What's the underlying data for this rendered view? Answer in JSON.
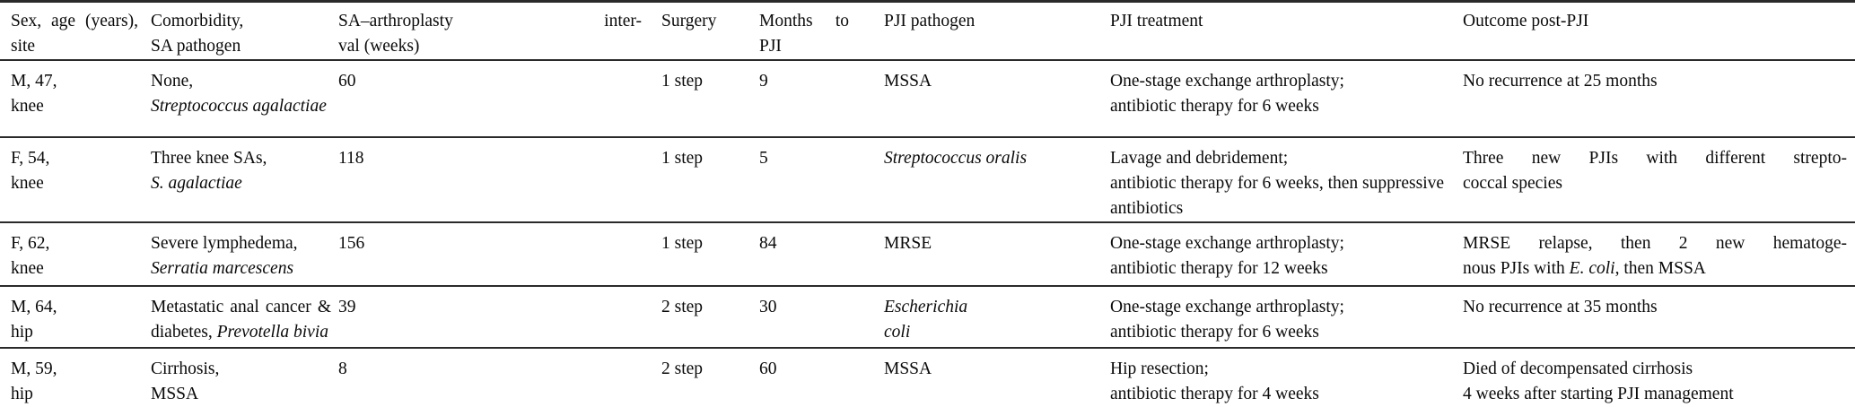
{
  "colors": {
    "background": "#ffffff",
    "text": "#0a0a0a",
    "rule": "#2a2a2a"
  },
  "table": {
    "headers": [
      [
        {
          "j": true,
          "s": [
            {
              "t": "Sex, age (years),"
            }
          ]
        },
        {
          "s": [
            {
              "t": "site"
            }
          ]
        }
      ],
      [
        {
          "s": [
            {
              "t": "Comorbidity,"
            }
          ]
        },
        {
          "s": [
            {
              "t": "SA pathogen"
            }
          ]
        }
      ],
      [
        {
          "j": true,
          "s": [
            {
              "t": "SA–arthroplasty inter-"
            }
          ]
        },
        {
          "s": [
            {
              "t": "val (weeks)"
            }
          ]
        }
      ],
      [
        {
          "s": [
            {
              "t": "Surgery"
            }
          ]
        }
      ],
      [
        {
          "j": true,
          "s": [
            {
              "t": "Months to"
            }
          ]
        },
        {
          "s": [
            {
              "t": "PJI"
            }
          ]
        }
      ],
      [
        {
          "s": [
            {
              "t": "PJI pathogen"
            }
          ]
        }
      ],
      [
        {
          "s": [
            {
              "t": "PJI treatment"
            }
          ]
        }
      ],
      [
        {
          "s": [
            {
              "t": "Outcome post-PJI"
            }
          ]
        }
      ]
    ],
    "rows": [
      [
        [
          {
            "s": [
              {
                "t": "M, 47,"
              }
            ]
          },
          {
            "s": [
              {
                "t": "knee"
              }
            ]
          }
        ],
        [
          {
            "s": [
              {
                "t": "None,"
              }
            ]
          },
          {
            "s": [
              {
                "t": "Streptococcus agalactiae",
                "i": true
              }
            ]
          }
        ],
        [
          {
            "s": [
              {
                "t": "60"
              }
            ]
          }
        ],
        [
          {
            "s": [
              {
                "t": "1 step"
              }
            ]
          }
        ],
        [
          {
            "s": [
              {
                "t": "9"
              }
            ]
          }
        ],
        [
          {
            "s": [
              {
                "t": "MSSA"
              }
            ]
          }
        ],
        [
          {
            "s": [
              {
                "t": "One-stage exchange arthroplasty;"
              }
            ]
          },
          {
            "s": [
              {
                "t": "antibiotic therapy for 6 weeks"
              }
            ]
          }
        ],
        [
          {
            "s": [
              {
                "t": "No recurrence at 25 months"
              }
            ]
          }
        ]
      ],
      [
        [
          {
            "s": [
              {
                "t": "F, 54,"
              }
            ]
          },
          {
            "s": [
              {
                "t": "knee"
              }
            ]
          }
        ],
        [
          {
            "s": [
              {
                "t": "Three knee SAs,"
              }
            ]
          },
          {
            "s": [
              {
                "t": "S. agalactiae",
                "i": true
              }
            ]
          }
        ],
        [
          {
            "s": [
              {
                "t": "118"
              }
            ]
          }
        ],
        [
          {
            "s": [
              {
                "t": "1 step"
              }
            ]
          }
        ],
        [
          {
            "s": [
              {
                "t": "5"
              }
            ]
          }
        ],
        [
          {
            "s": [
              {
                "t": "Streptococcus oralis",
                "i": true
              }
            ]
          }
        ],
        [
          {
            "s": [
              {
                "t": "Lavage and debridement;"
              }
            ]
          },
          {
            "s": [
              {
                "t": "antibiotic therapy for 6 weeks, then suppressive"
              }
            ]
          },
          {
            "s": [
              {
                "t": "antibiotics"
              }
            ]
          }
        ],
        [
          {
            "j": true,
            "s": [
              {
                "t": "Three new PJIs with different strepto-"
              }
            ]
          },
          {
            "s": [
              {
                "t": "coccal species"
              }
            ]
          }
        ]
      ],
      [
        [
          {
            "s": [
              {
                "t": "F, 62,"
              }
            ]
          },
          {
            "s": [
              {
                "t": "knee"
              }
            ]
          }
        ],
        [
          {
            "s": [
              {
                "t": "Severe lymphedema,"
              }
            ]
          },
          {
            "s": [
              {
                "t": "Serratia marcescens",
                "i": true
              }
            ]
          }
        ],
        [
          {
            "s": [
              {
                "t": "156"
              }
            ]
          }
        ],
        [
          {
            "s": [
              {
                "t": "1 step"
              }
            ]
          }
        ],
        [
          {
            "s": [
              {
                "t": "84"
              }
            ]
          }
        ],
        [
          {
            "s": [
              {
                "t": "MRSE"
              }
            ]
          }
        ],
        [
          {
            "s": [
              {
                "t": "One-stage exchange arthroplasty;"
              }
            ]
          },
          {
            "s": [
              {
                "t": "antibiotic therapy for 12 weeks"
              }
            ]
          }
        ],
        [
          {
            "j": true,
            "s": [
              {
                "t": "MRSE relapse, then 2 new hematoge-"
              }
            ]
          },
          {
            "s": [
              {
                "t": "nous PJIs with "
              },
              {
                "t": "E. coli",
                "i": true
              },
              {
                "t": ", then MSSA"
              }
            ]
          }
        ]
      ],
      [
        [
          {
            "s": [
              {
                "t": "M, 64,"
              }
            ]
          },
          {
            "s": [
              {
                "t": "hip"
              }
            ]
          }
        ],
        [
          {
            "j": true,
            "s": [
              {
                "t": "Metastatic anal cancer &"
              }
            ]
          },
          {
            "s": [
              {
                "t": "diabetes, "
              },
              {
                "t": "Prevotella bivia",
                "i": true
              }
            ]
          }
        ],
        [
          {
            "s": [
              {
                "t": "39"
              }
            ]
          }
        ],
        [
          {
            "s": [
              {
                "t": "2 step"
              }
            ]
          }
        ],
        [
          {
            "s": [
              {
                "t": "30"
              }
            ]
          }
        ],
        [
          {
            "s": [
              {
                "t": "Escherichia",
                "i": true
              }
            ]
          },
          {
            "s": [
              {
                "t": "coli",
                "i": true
              }
            ]
          }
        ],
        [
          {
            "s": [
              {
                "t": "One-stage exchange arthroplasty;"
              }
            ]
          },
          {
            "s": [
              {
                "t": "antibiotic therapy for 6 weeks"
              }
            ]
          }
        ],
        [
          {
            "s": [
              {
                "t": "No recurrence at 35 months"
              }
            ]
          }
        ]
      ],
      [
        [
          {
            "s": [
              {
                "t": "M, 59,"
              }
            ]
          },
          {
            "s": [
              {
                "t": "hip"
              }
            ]
          }
        ],
        [
          {
            "s": [
              {
                "t": "Cirrhosis,"
              }
            ]
          },
          {
            "s": [
              {
                "t": "MSSA"
              }
            ]
          }
        ],
        [
          {
            "s": [
              {
                "t": "8"
              }
            ]
          }
        ],
        [
          {
            "s": [
              {
                "t": "2 step"
              }
            ]
          }
        ],
        [
          {
            "s": [
              {
                "t": "60"
              }
            ]
          }
        ],
        [
          {
            "s": [
              {
                "t": "MSSA"
              }
            ]
          }
        ],
        [
          {
            "s": [
              {
                "t": "Hip resection;"
              }
            ]
          },
          {
            "s": [
              {
                "t": "antibiotic therapy for 4 weeks"
              }
            ]
          }
        ],
        [
          {
            "s": [
              {
                "t": "Died of decompensated cirrhosis"
              }
            ]
          },
          {
            "s": [
              {
                "t": "4 weeks after starting PJI management"
              }
            ]
          }
        ]
      ]
    ]
  }
}
